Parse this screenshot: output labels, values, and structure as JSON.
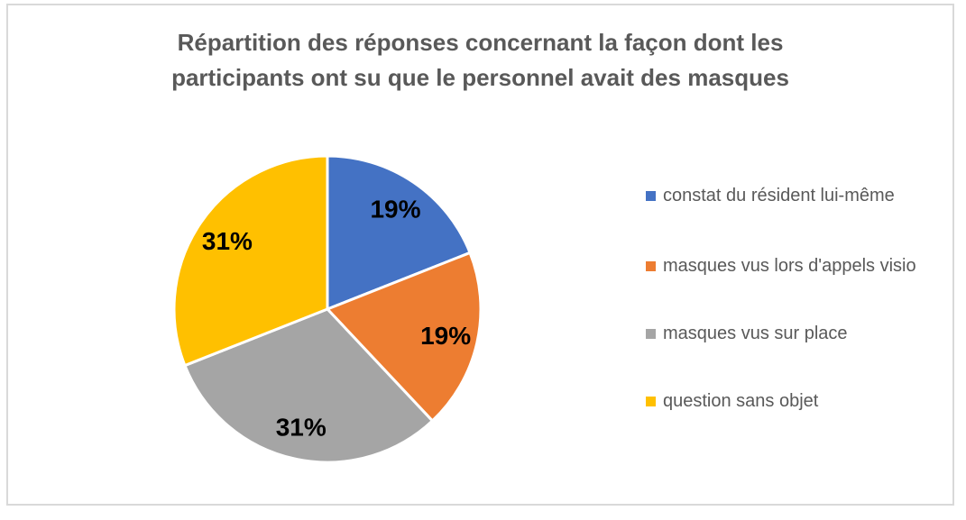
{
  "window": {
    "background": "#FFFFFF",
    "frame_border_color": "#D9D9D9"
  },
  "chart_data": {
    "type": "pie",
    "title": "Répartition des réponses concernant la façon dont les participants ont su que le personnel avait des masques",
    "title_lines": [
      "Répartition des réponses concernant la façon dont les",
      "participants ont su que le personnel avait des masques"
    ],
    "title_color": "#595959",
    "categories": [
      "constat du résident lui-même",
      "masques vus lors d'appels visio",
      "masques vus sur place",
      "question sans objet"
    ],
    "values": [
      19,
      19,
      31,
      31
    ],
    "data_labels": [
      "19%",
      "19%",
      "31%",
      "31%"
    ],
    "colors": [
      "#4472C4",
      "#ED7D31",
      "#A5A5A5",
      "#FFC000"
    ],
    "start_angle_deg": 0,
    "direction": "clockwise",
    "legend_position": "right",
    "legend_text_color": "#595959",
    "data_label_color": "#000000",
    "slice_border_color": "#FFFFFF"
  }
}
